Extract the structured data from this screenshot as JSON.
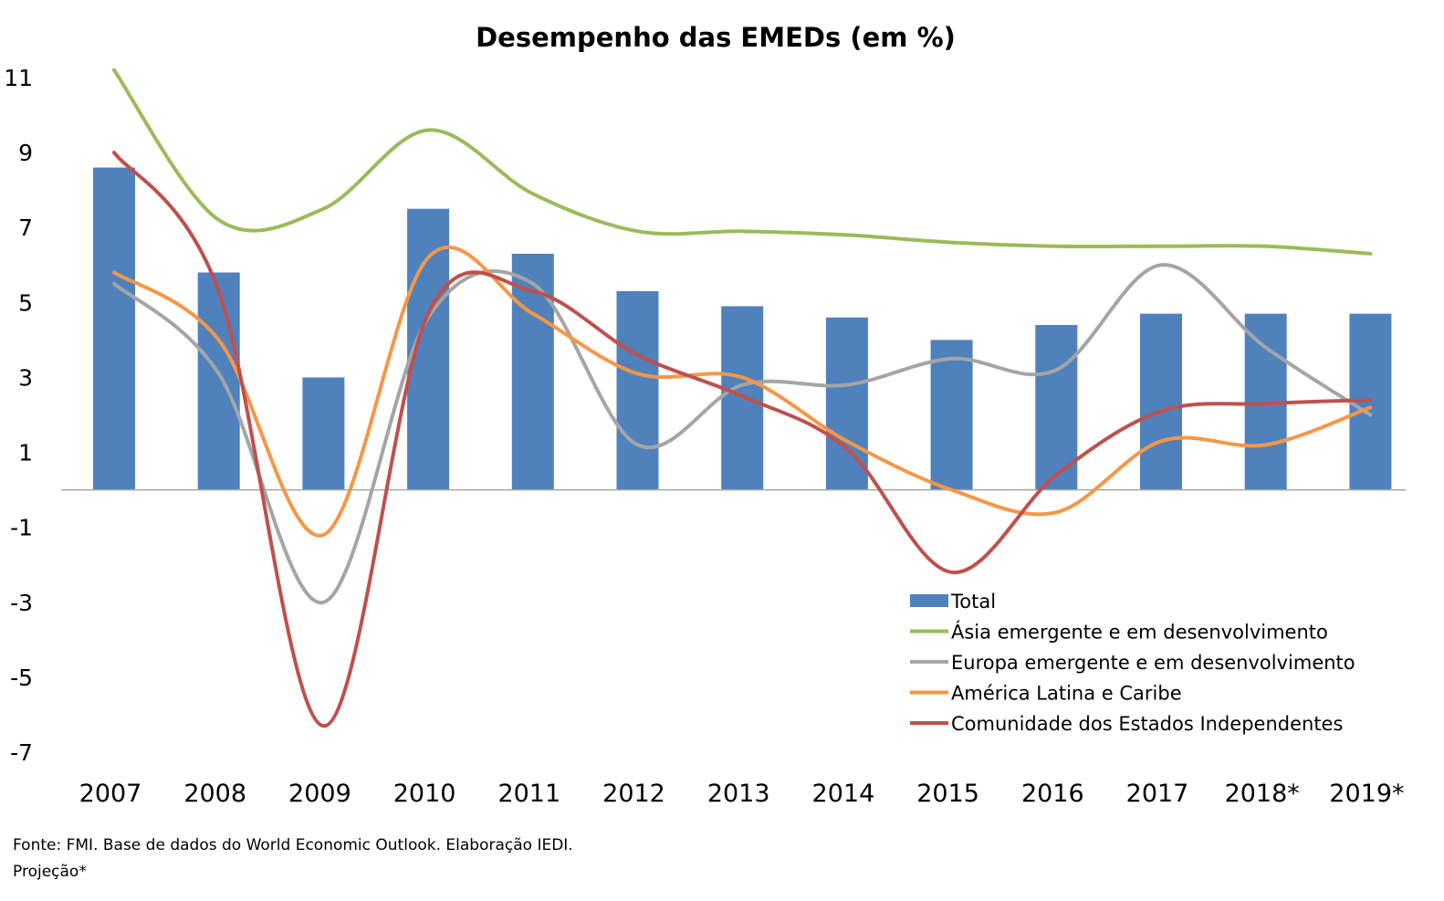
{
  "chart_data": {
    "type": "bar",
    "title": "Desempenho das EMEDs (em %)",
    "xlabel": "",
    "ylabel": "",
    "ylim": [
      -7,
      11
    ],
    "y_ticks": [
      -7,
      -5,
      -3,
      -1,
      1,
      3,
      5,
      7,
      9,
      11
    ],
    "grid": false,
    "legend_position": "bottom-right",
    "categories": [
      "2007",
      "2008",
      "2009",
      "2010",
      "2011",
      "2012",
      "2013",
      "2014",
      "2015",
      "2016",
      "2017",
      "2018*",
      "2019*"
    ],
    "series": [
      {
        "name": "Total",
        "type": "bar",
        "color": "#4F81BD",
        "values": [
          8.6,
          5.8,
          3.0,
          7.5,
          6.3,
          5.3,
          4.9,
          4.6,
          4.0,
          4.4,
          4.7,
          4.7,
          4.7
        ]
      },
      {
        "name": "Ásia emergente e em desenvolvimento",
        "type": "line",
        "color": "#9BBB59",
        "values": [
          11.2,
          7.2,
          7.5,
          9.6,
          7.9,
          6.9,
          6.9,
          6.8,
          6.6,
          6.5,
          6.5,
          6.5,
          6.3
        ]
      },
      {
        "name": "Europa emergente e em desenvolvimento",
        "type": "line",
        "color": "#A5A5A5",
        "values": [
          5.5,
          3.1,
          -3.0,
          4.6,
          5.5,
          1.2,
          2.8,
          2.8,
          3.5,
          3.2,
          6.0,
          3.8,
          2.0
        ]
      },
      {
        "name": "América Latina e Caribe",
        "type": "line",
        "color": "#F79646",
        "values": [
          5.8,
          4.0,
          -1.2,
          6.2,
          4.7,
          3.1,
          3.0,
          1.3,
          0.0,
          -0.6,
          1.3,
          1.2,
          2.2
        ]
      },
      {
        "name": "Comunidade dos Estados Independentes",
        "type": "line",
        "color": "#C0504D",
        "values": [
          9.0,
          5.3,
          -6.3,
          4.7,
          5.3,
          3.6,
          2.5,
          1.1,
          -2.2,
          0.4,
          2.1,
          2.3,
          2.4
        ]
      }
    ]
  },
  "footer": {
    "source": "Fonte: FMI. Base de dados do World Economic Outlook. Elaboração IEDI.",
    "note": "Projeção*"
  }
}
